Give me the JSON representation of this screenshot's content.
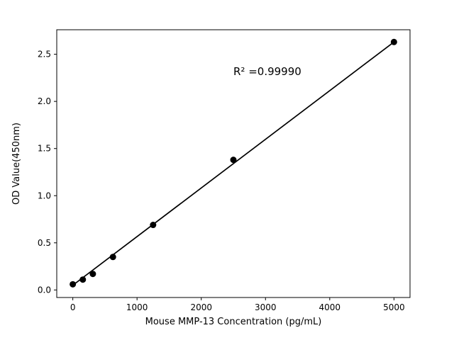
{
  "chart_data": {
    "type": "scatter",
    "title": "",
    "xlabel": "Mouse MMP-13 Concentration (pg/mL)",
    "ylabel": "OD Value(450nm)",
    "x": [
      0,
      156,
      312,
      625,
      1250,
      2500,
      5000
    ],
    "y": [
      0.06,
      0.11,
      0.17,
      0.35,
      0.69,
      1.38,
      2.63
    ],
    "fit_line": {
      "x1": 0,
      "y1": 0.05,
      "x2": 5000,
      "y2": 2.63
    },
    "annotation": {
      "text": "R² =0.99990",
      "x": 2500,
      "y": 2.28
    },
    "xlim": [
      -250,
      5250
    ],
    "ylim": [
      -0.08,
      2.76
    ],
    "xticks": [
      0,
      1000,
      2000,
      3000,
      4000,
      5000
    ],
    "xtick_labels": [
      "0",
      "1000",
      "2000",
      "3000",
      "4000",
      "5000"
    ],
    "yticks": [
      0.0,
      0.5,
      1.0,
      1.5,
      2.0,
      2.5
    ],
    "ytick_labels": [
      "0.0",
      "0.5",
      "1.0",
      "1.5",
      "2.0",
      "2.5"
    ],
    "grid": false,
    "legend": null,
    "marker_color": "#000000",
    "line_color": "#000000",
    "axis_color": "#000000",
    "background": "#ffffff"
  }
}
